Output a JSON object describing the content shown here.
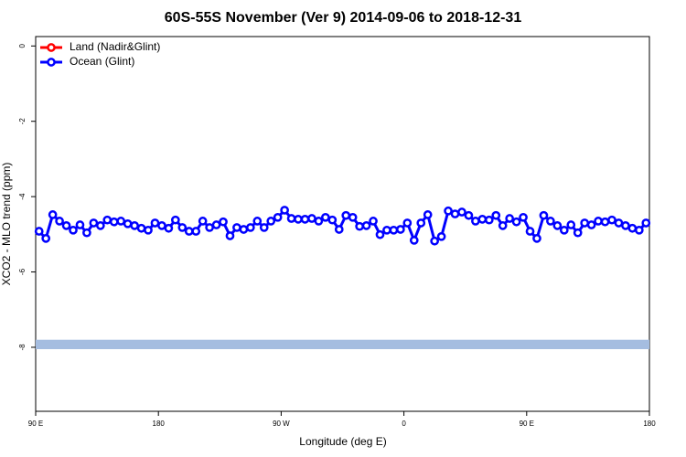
{
  "chart_data": {
    "type": "line",
    "title": "60S-55S November (Ver 9)   2014-09-06 to 2018-12-31",
    "xlabel": "Longitude (deg E)",
    "ylabel": "XCO2 - MLO trend (ppm)",
    "xlim": [
      90,
      540
    ],
    "ylim": [
      -9.7,
      0.25
    ],
    "xticks": [
      {
        "value": 90,
        "label": "90 E"
      },
      180,
      {
        "value": 270,
        "label": "90 W"
      },
      {
        "value": 360,
        "label": "0"
      },
      {
        "value": 450,
        "label": "90 E"
      },
      {
        "value": 540,
        "label": "180"
      }
    ],
    "yticks": [
      0,
      -2,
      -4,
      -6,
      -8
    ],
    "legend": "top-left",
    "coverage_band": {
      "color": "#a5bde0",
      "ylim": [
        -8.05,
        -7.8
      ]
    },
    "series": [
      {
        "name": "Land (Nadir&Glint)",
        "color": "#ff0000",
        "x": [],
        "values": []
      },
      {
        "name": "Ocean (Glint)",
        "color": "#0000ff",
        "x": [
          92.5,
          97.5,
          102.5,
          107.5,
          112.5,
          117.5,
          122.5,
          127.5,
          132.5,
          137.5,
          142.5,
          147.5,
          152.5,
          157.5,
          162.5,
          167.5,
          172.5,
          177.5,
          182.5,
          187.5,
          192.5,
          197.5,
          202.5,
          207.5,
          212.5,
          217.5,
          222.5,
          227.5,
          232.5,
          237.5,
          242.5,
          247.5,
          252.5,
          257.5,
          262.5,
          267.5,
          272.5,
          277.5,
          282.5,
          287.5,
          292.5,
          297.5,
          302.5,
          307.5,
          312.5,
          317.5,
          322.5,
          327.5,
          332.5,
          337.5,
          342.5,
          347.5,
          352.5,
          357.5,
          362.5,
          367.5,
          372.5,
          377.5,
          382.5,
          387.5,
          392.5,
          397.5,
          402.5,
          407.5,
          412.5,
          417.5,
          422.5,
          427.5,
          432.5,
          437.5,
          442.5,
          447.5,
          452.5,
          457.5,
          462.5,
          467.5,
          472.5,
          477.5,
          482.5,
          487.5,
          492.5,
          497.5,
          502.5,
          507.5,
          512.5,
          517.5,
          522.5,
          527.5,
          532.5,
          537.5
        ],
        "values": [
          -4.92,
          -5.11,
          -4.48,
          -4.65,
          -4.77,
          -4.89,
          -4.75,
          -4.96,
          -4.7,
          -4.77,
          -4.62,
          -4.67,
          -4.65,
          -4.72,
          -4.77,
          -4.84,
          -4.89,
          -4.7,
          -4.77,
          -4.84,
          -4.62,
          -4.82,
          -4.92,
          -4.92,
          -4.65,
          -4.82,
          -4.75,
          -4.67,
          -5.04,
          -4.82,
          -4.87,
          -4.82,
          -4.65,
          -4.82,
          -4.65,
          -4.55,
          -4.36,
          -4.58,
          -4.6,
          -4.6,
          -4.58,
          -4.65,
          -4.55,
          -4.62,
          -4.87,
          -4.5,
          -4.55,
          -4.79,
          -4.77,
          -4.65,
          -5.01,
          -4.89,
          -4.89,
          -4.87,
          -4.7,
          -5.16,
          -4.7,
          -4.48,
          -5.18,
          -5.06,
          -4.38,
          -4.46,
          -4.41,
          -4.5,
          -4.65,
          -4.6,
          -4.62,
          -4.5,
          -4.77,
          -4.58,
          -4.67,
          -4.55,
          -4.92,
          -5.11,
          -4.5,
          -4.65,
          -4.77,
          -4.89,
          -4.75,
          -4.96,
          -4.7,
          -4.75,
          -4.65,
          -4.67,
          -4.62,
          -4.7,
          -4.77,
          -4.84,
          -4.89,
          -4.7
        ]
      }
    ]
  }
}
